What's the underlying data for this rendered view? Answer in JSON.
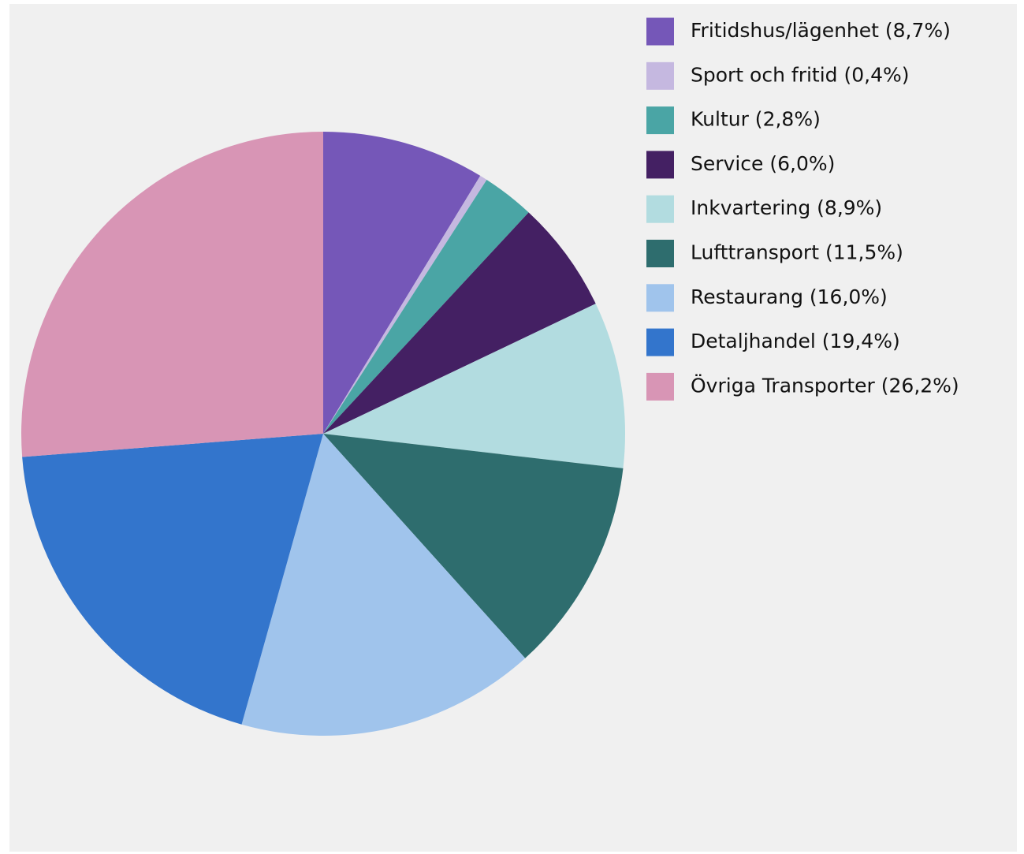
{
  "chart_data": {
    "type": "pie",
    "categories": [
      "Fritidshus/lägenhet (8,7%)",
      "Sport och fritid (0,4%)",
      "Kultur (2,8%)",
      "Service (6,0%)",
      "Inkvartering (8,9%)",
      "Lufttransport (11,5%)",
      "Restaurang (16,0%)",
      "Detaljhandel (19,4%)",
      "Övriga Transporter (26,2%)"
    ],
    "values": [
      8.7,
      0.4,
      2.8,
      6.0,
      8.9,
      11.5,
      16.0,
      19.4,
      26.2
    ],
    "colors": [
      "#7557b8",
      "#c5b8e0",
      "#4aa5a5",
      "#442063",
      "#b2dce0",
      "#2e6d6e",
      "#a0c4ec",
      "#3375cc",
      "#d895b5"
    ],
    "legend": "top-right"
  }
}
